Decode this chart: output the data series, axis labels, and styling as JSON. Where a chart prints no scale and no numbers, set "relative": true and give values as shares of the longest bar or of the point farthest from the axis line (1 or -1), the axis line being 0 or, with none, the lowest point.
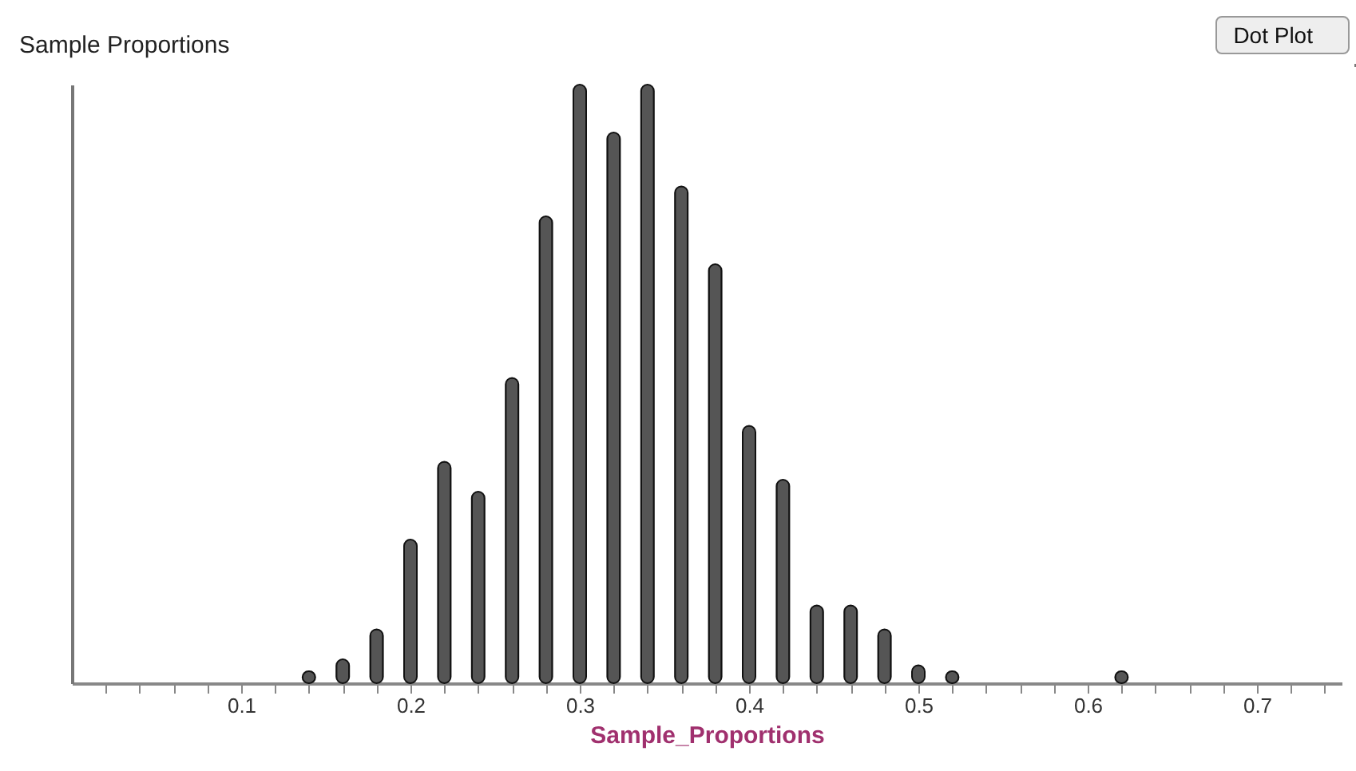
{
  "chart_data": {
    "type": "bar",
    "title": "Sample Proportions",
    "xlabel": "Sample_Proportions",
    "relative": true,
    "annotations": [
      "Dot Plot"
    ],
    "x": [
      0.14,
      0.16,
      0.18,
      0.2,
      0.22,
      0.24,
      0.26,
      0.28,
      0.3,
      0.32,
      0.34,
      0.36,
      0.38,
      0.4,
      0.42,
      0.44,
      0.46,
      0.48,
      0.5,
      0.52,
      0.62
    ],
    "series": [
      {
        "color": "#555555",
        "values": [
          0.02,
          0.04,
          0.09,
          0.24,
          0.37,
          0.32,
          0.51,
          0.78,
          1,
          0.92,
          1,
          0.83,
          0.7,
          0.43,
          0.34,
          0.13,
          0.13,
          0.09,
          0.03,
          0.02,
          0.02
        ]
      }
    ],
    "xlim": [
      0,
      0.75
    ],
    "xticks": [
      {
        "value": 0.02,
        "label": null
      },
      {
        "value": 0.04,
        "label": null
      },
      {
        "value": 0.06,
        "label": null
      },
      {
        "value": 0.08,
        "label": null
      },
      0.1,
      {
        "value": 0.12,
        "label": null
      },
      {
        "value": 0.14,
        "label": null
      },
      {
        "value": 0.16,
        "label": null
      },
      {
        "value": 0.18,
        "label": null
      },
      0.2,
      {
        "value": 0.22,
        "label": null
      },
      {
        "value": 0.24,
        "label": null
      },
      {
        "value": 0.26,
        "label": null
      },
      {
        "value": 0.28,
        "label": null
      },
      0.3,
      {
        "value": 0.32,
        "label": null
      },
      {
        "value": 0.34,
        "label": null
      },
      {
        "value": 0.36,
        "label": null
      },
      {
        "value": 0.38,
        "label": null
      },
      0.4,
      {
        "value": 0.42,
        "label": null
      },
      {
        "value": 0.44,
        "label": null
      },
      {
        "value": 0.46,
        "label": null
      },
      {
        "value": 0.48,
        "label": null
      },
      0.5,
      {
        "value": 0.52,
        "label": null
      },
      {
        "value": 0.54,
        "label": null
      },
      {
        "value": 0.56,
        "label": null
      },
      {
        "value": 0.58,
        "label": null
      },
      0.6,
      {
        "value": 0.62,
        "label": null
      },
      {
        "value": 0.64,
        "label": null
      },
      {
        "value": 0.66,
        "label": null
      },
      {
        "value": 0.68,
        "label": null
      },
      0.7,
      {
        "value": 0.72,
        "label": null
      },
      {
        "value": 0.74,
        "label": null
      }
    ],
    "tick_labels": "x",
    "grid": false,
    "legend": false
  }
}
